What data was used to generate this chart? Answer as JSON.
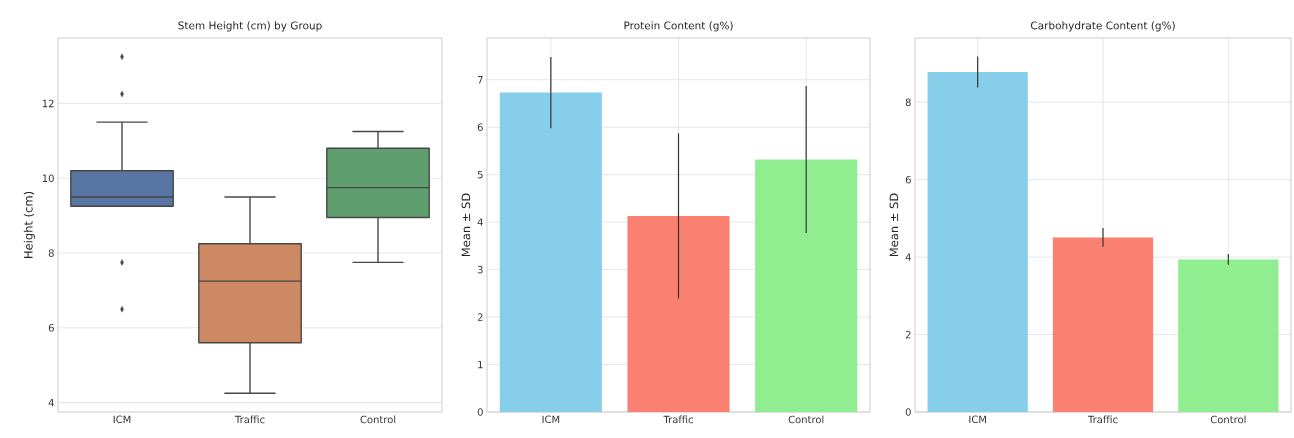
{
  "chart_data": [
    {
      "type": "box",
      "title": "Stem Height (cm) by Group",
      "ylabel": "Height (cm)",
      "categories": [
        "ICM",
        "Traffic",
        "Control"
      ],
      "boxes": [
        {
          "low": 9.25,
          "q1": 9.25,
          "median": 9.5,
          "q3": 10.2,
          "high": 11.5,
          "outliers": [
            13.25,
            12.25,
            7.75,
            6.5
          ]
        },
        {
          "low": 4.25,
          "q1": 5.6,
          "median": 7.25,
          "q3": 8.25,
          "high": 9.5
        },
        {
          "low": 7.75,
          "q1": 8.95,
          "median": 9.75,
          "q3": 10.8,
          "high": 11.25
        }
      ],
      "colors": [
        "#5975a4",
        "#cc8963",
        "#5f9e6e"
      ],
      "ylim": [
        3.75,
        13.75
      ],
      "yticks": [
        4,
        6,
        8,
        10,
        12
      ],
      "grid": "y"
    },
    {
      "type": "bar",
      "title": "Protein Content (g%)",
      "ylabel": "Mean ± SD",
      "categories": [
        "ICM",
        "Traffic",
        "Control"
      ],
      "values": [
        6.73,
        4.13,
        5.32
      ],
      "errors": [
        0.75,
        1.74,
        1.55
      ],
      "colors": [
        "#87ceeb",
        "#fa8072",
        "#90ee90"
      ],
      "ylim": [
        0,
        7.88
      ],
      "yticks": [
        0,
        1,
        2,
        3,
        4,
        5,
        6,
        7
      ],
      "grid": true
    },
    {
      "type": "bar",
      "title": "Carbohydrate Content (g%)",
      "ylabel": "Mean ± SD",
      "categories": [
        "ICM",
        "Traffic",
        "Control"
      ],
      "values": [
        8.78,
        4.51,
        3.94
      ],
      "errors": [
        0.4,
        0.24,
        0.14
      ],
      "colors": [
        "#87ceeb",
        "#fa8072",
        "#90ee90"
      ],
      "ylim": [
        0,
        9.66
      ],
      "yticks": [
        0,
        2,
        4,
        6,
        8
      ],
      "grid": true
    }
  ]
}
